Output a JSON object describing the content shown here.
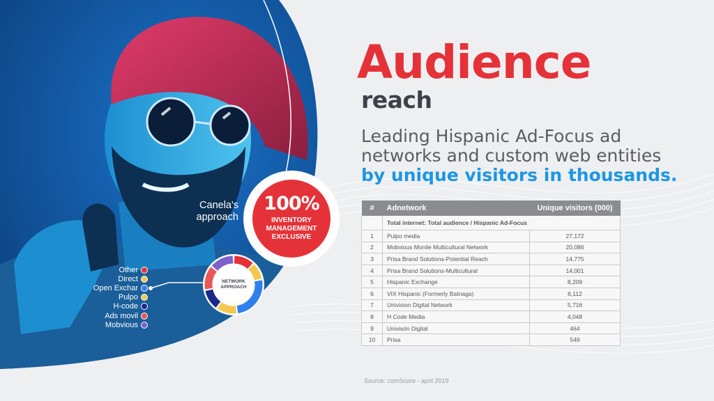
{
  "header": {
    "title": "Audience",
    "subtitle": "reach",
    "description": "Leading Hispanic Ad-Focus ad networks and custom web entities",
    "highlight": "by unique visitors in thousands."
  },
  "badge": {
    "approach": "Canela's approach",
    "percent": "100%",
    "text": "INVENTORY MANAGEMENT EXCLUSIVE"
  },
  "legend": {
    "items": [
      {
        "label": "Other",
        "color": "#e53238"
      },
      {
        "label": "Direct",
        "color": "#f2c94c"
      },
      {
        "label": "Open Exchar",
        "color": "#2f80ed"
      },
      {
        "label": "Pulpo",
        "color": "#f2c94c"
      },
      {
        "label": "H-code",
        "color": "#1b2a8a"
      },
      {
        "label": "Ads movil",
        "color": "#eb5757"
      },
      {
        "label": "Mobvious",
        "color": "#7b61c9"
      }
    ]
  },
  "donut": {
    "label": "NETWORK APPROACH",
    "segments": [
      {
        "color": "#e53238",
        "value": 12
      },
      {
        "color": "#f2c94c",
        "value": 10
      },
      {
        "color": "#2f80ed",
        "value": 26
      },
      {
        "color": "#f2c94c",
        "value": 12
      },
      {
        "color": "#1b2a8a",
        "value": 12
      },
      {
        "color": "#eb5757",
        "value": 14
      },
      {
        "color": "#7b61c9",
        "value": 14
      }
    ]
  },
  "table": {
    "headers": {
      "num": "#",
      "name": "Adnetwork",
      "value": "Unique visitors (000)"
    },
    "total": "Total internet: Total audience / Hispanic Ad-Focus",
    "rows": [
      {
        "num": "1",
        "name": "Pulpo media",
        "value": "27,172"
      },
      {
        "num": "2",
        "name": "Mobvious Monile Multicultural Network",
        "value": "20,086"
      },
      {
        "num": "3",
        "name": "Prisa Brand Solutions-Potential Reach",
        "value": "14,775"
      },
      {
        "num": "4",
        "name": "Prisa Brand Solutions-Multicultural",
        "value": "14,001"
      },
      {
        "num": "5",
        "name": "Hispanic Exchange",
        "value": "8,209"
      },
      {
        "num": "6",
        "name": "VIX Hispanic (Formerly Batnaga)",
        "value": "6,112"
      },
      {
        "num": "7",
        "name": "Univision Digital Network",
        "value": "5,716"
      },
      {
        "num": "8",
        "name": "H Code Media",
        "value": "4,048"
      },
      {
        "num": "9",
        "name": "Univisón Digital",
        "value": "464"
      },
      {
        "num": "10",
        "name": "Prisa",
        "value": "549"
      }
    ]
  },
  "source": "Source: comScore - april 2019"
}
